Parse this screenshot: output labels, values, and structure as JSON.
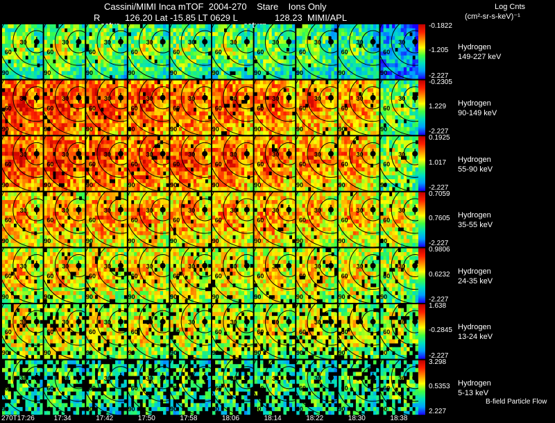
{
  "header": {
    "title": "Cassini/MIMI Inca mTOF  2004-270    Stare    Ions Only",
    "loc_r": "R",
    "loc_mid": "126.20 Lat -15.85 LT 0629 L",
    "loc_end": "128.23  MIMI/APL",
    "units_title": "Log Cnts",
    "units": "(cm²-sr-s-keV)⁻¹",
    "tag_left": "satur",
    "tag_right": "saturn",
    "bfield_note": "B-field Particle Flow"
  },
  "chart_data": {
    "type": "heatmap",
    "description_free": true,
    "times": [
      "270T17:26",
      "17:34",
      "17:42",
      "17:50",
      "17:58",
      "18:06",
      "18:14",
      "18:22",
      "18:30",
      "18:38"
    ],
    "rows": [
      {
        "species": "Hydrogen",
        "energy": "149-227 keV",
        "cb_max": "-0.1822",
        "cb_mid": "-1.205",
        "cb_min": "-2.227",
        "intensity": [
          0.55,
          0.6,
          0.55,
          0.55,
          0.55,
          0.55,
          0.5,
          0.5,
          0.45,
          0.3
        ]
      },
      {
        "species": "Hydrogen",
        "energy": "90-149 keV",
        "cb_max": "-0.2305",
        "cb_mid": "1.229",
        "cb_min": "-2.227",
        "intensity": [
          0.92,
          0.92,
          0.9,
          0.9,
          0.87,
          0.87,
          0.85,
          0.82,
          0.8,
          0.55
        ]
      },
      {
        "species": "Hydrogen",
        "energy": "55-90 keV",
        "cb_max": "0.1925",
        "cb_mid": "1.017",
        "cb_min": "-2.227",
        "intensity": [
          0.92,
          0.92,
          0.9,
          0.88,
          0.88,
          0.88,
          0.85,
          0.82,
          0.8,
          0.6
        ]
      },
      {
        "species": "Hydrogen",
        "energy": "35-55 keV",
        "cb_max": "0.7059",
        "cb_mid": "0.7605",
        "cb_min": "-2.227",
        "intensity": [
          0.78,
          0.78,
          0.78,
          0.78,
          0.78,
          0.78,
          0.78,
          0.75,
          0.75,
          0.68
        ]
      },
      {
        "species": "Hydrogen",
        "energy": "24-35 keV",
        "cb_max": "0.9806",
        "cb_mid": "0.6232",
        "cb_min": "-2.227",
        "intensity": [
          0.72,
          0.72,
          0.72,
          0.72,
          0.72,
          0.7,
          0.7,
          0.7,
          0.68,
          0.62
        ]
      },
      {
        "species": "Hydrogen",
        "energy": "13-24 keV",
        "cb_max": "1.638",
        "cb_mid": "-0.2845",
        "cb_min": "-2.227",
        "intensity": [
          0.68,
          0.68,
          0.68,
          0.68,
          0.66,
          0.66,
          0.66,
          0.66,
          0.64,
          0.6
        ]
      },
      {
        "species": "Hydrogen",
        "energy": "5-13 keV",
        "cb_max": "3.298",
        "cb_mid": "0.5353",
        "cb_min": "2.227",
        "intensity": [
          0.5,
          0.5,
          0.5,
          0.5,
          0.5,
          0.5,
          0.5,
          0.5,
          0.5,
          0.5
        ]
      }
    ],
    "contour_labels": [
      "30",
      "60",
      "90"
    ],
    "colormap": [
      "#1a00ff",
      "#00a0ff",
      "#00e0c0",
      "#40ff40",
      "#ffff00",
      "#ff9000",
      "#ff2000",
      "#c00000"
    ]
  }
}
